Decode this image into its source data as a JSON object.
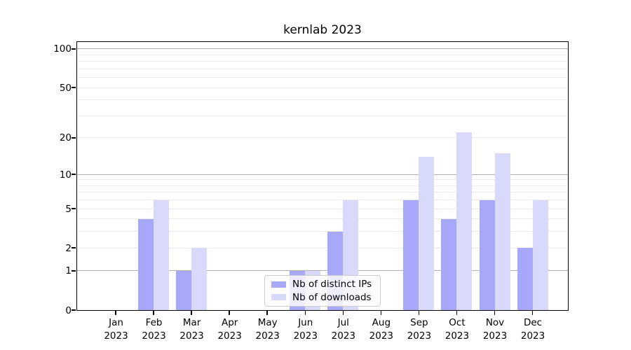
{
  "title": "kernlab 2023",
  "chart_data": {
    "type": "bar",
    "title": "kernlab 2023",
    "categories": [
      "Jan 2023",
      "Feb 2023",
      "Mar 2023",
      "Apr 2023",
      "May 2023",
      "Jun 2023",
      "Jul 2023",
      "Aug 2023",
      "Sep 2023",
      "Oct 2023",
      "Nov 2023",
      "Dec 2023"
    ],
    "series": [
      {
        "name": "Nb of distinct IPs",
        "color": "#a8a8fb",
        "values": [
          0,
          4,
          1,
          0,
          0,
          1,
          3,
          0,
          6,
          4,
          6,
          2
        ]
      },
      {
        "name": "Nb of downloads",
        "color": "#d9d9fb",
        "values": [
          0,
          6,
          2,
          0,
          0,
          1,
          6,
          0,
          14,
          22,
          15,
          6
        ]
      }
    ],
    "xlabel": "",
    "ylabel": "",
    "y_scale": "log1p",
    "ylim": [
      0,
      113
    ],
    "y_tick_labels": [
      0,
      1,
      2,
      5,
      10,
      20,
      50,
      100
    ],
    "y_major_gridlines": [
      1,
      10,
      100
    ],
    "y_minor_gridlines": [
      2,
      3,
      4,
      5,
      6,
      7,
      8,
      9,
      20,
      30,
      40,
      50,
      60,
      70,
      80,
      90
    ],
    "grid": true,
    "legend_position": "lower center"
  },
  "colors": {
    "bar_distinct_ips": "#a8a8fb",
    "bar_downloads": "#d9d9fb",
    "major_grid": "#b0b0b0",
    "minor_grid": "#ebebeb",
    "axis": "#000000",
    "legend_border": "#cccccc",
    "background": "#ffffff"
  }
}
